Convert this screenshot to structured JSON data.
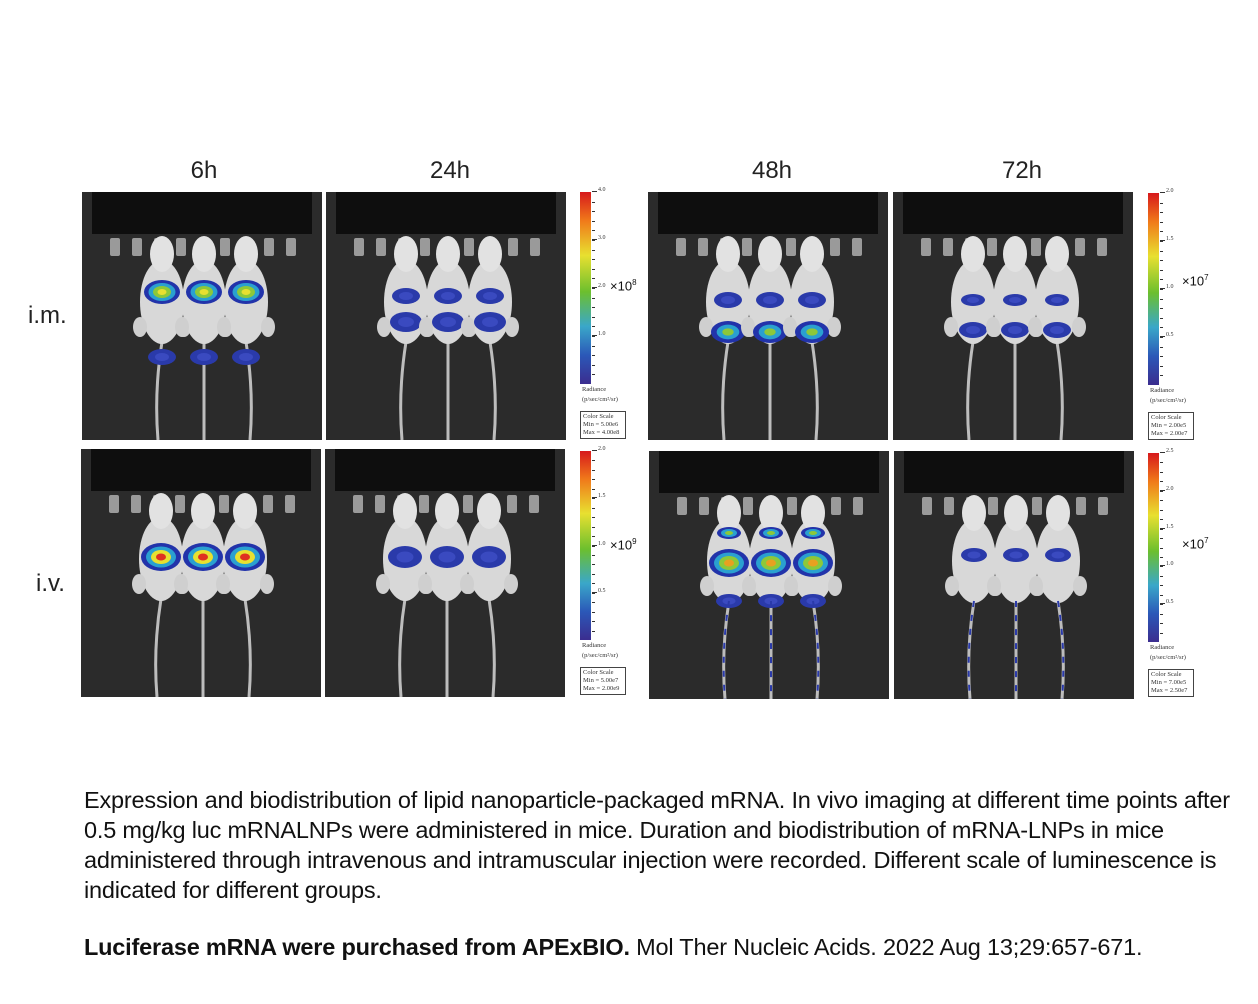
{
  "figure": {
    "time_labels": [
      "6h",
      "24h",
      "48h",
      "72h"
    ],
    "route_labels": [
      "i.m.",
      "i.v."
    ],
    "color_scales": [
      {
        "ticks": [
          4.0,
          3.0,
          2.0,
          1.0
        ],
        "tick_labels": [
          "4.0",
          "3.0",
          "2.0",
          "1.0"
        ],
        "max": 4.0,
        "exponent_base": "×10",
        "exponent": "8",
        "radiance_label": "Radiance",
        "radiance_units": "(p/sec/cm²/sr)",
        "scale_title": "Color Scale",
        "min_text": "Min = 5.00e6",
        "max_text": "Max = 4.00e8"
      },
      {
        "ticks": [
          2.0,
          1.5,
          1.0,
          0.5
        ],
        "tick_labels": [
          "2.0",
          "1.5",
          "1.0",
          "0.5"
        ],
        "max": 2.0,
        "exponent_base": "×10",
        "exponent": "7",
        "radiance_label": "Radiance",
        "radiance_units": "(p/sec/cm²/sr)",
        "scale_title": "Color Scale",
        "min_text": "Min = 2.00e5",
        "max_text": "Max = 2.00e7"
      },
      {
        "ticks": [
          2.0,
          1.5,
          1.0,
          0.5
        ],
        "tick_labels": [
          "2.0",
          "1.5",
          "1.0",
          "0.5"
        ],
        "max": 2.0,
        "exponent_base": "×10",
        "exponent": "9",
        "radiance_label": "Radiance",
        "radiance_units": "(p/sec/cm²/sr)",
        "scale_title": "Color Scale",
        "min_text": "Min = 5.00e7",
        "max_text": "Max = 2.00e9"
      },
      {
        "ticks": [
          2.5,
          2.0,
          1.5,
          1.0,
          0.5
        ],
        "tick_labels": [
          "2.5",
          "2.0",
          "1.5",
          "1.0",
          "0.5"
        ],
        "max": 2.5,
        "exponent_base": "×10",
        "exponent": "7",
        "radiance_label": "Radiance",
        "radiance_units": "(p/sec/cm²/sr)",
        "scale_title": "Color Scale",
        "min_text": "Min = 7.00e5",
        "max_text": "Max = 2.50e7"
      }
    ]
  },
  "caption": "Expression and biodistribution of lipid nanoparticle-packaged mRNA. In vivo imaging at different time points after 0.5 mg/kg luc mRNALNPs were administered in mice. Duration and biodistribution of mRNA-LNPs in mice administered through intravenous and intramuscular injection were recorded. Different scale of luminescence is indicated for different groups.",
  "citation": {
    "bold": "Luciferase mRNA were purchased from APExBIO.",
    "rest": " Mol Ther Nucleic Acids. 2022 Aug 13;29:657-671."
  }
}
